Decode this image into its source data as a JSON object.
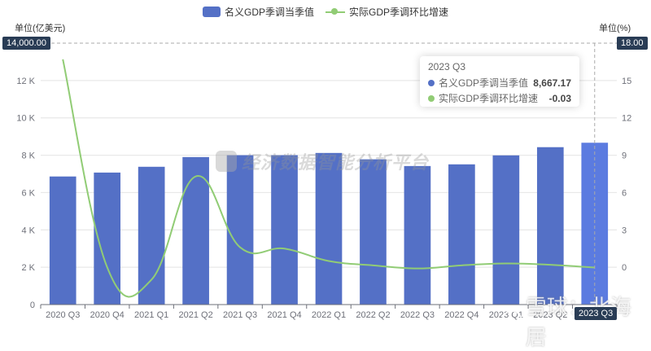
{
  "legend": {
    "bar_label": "名义GDP季调当季值",
    "line_label": "实际GDP季调环比增速"
  },
  "axes": {
    "left_unit": "单位(亿美元)",
    "right_unit": "单位(%)",
    "left_pointer_label": "14,000.00",
    "right_pointer_label": "18.00",
    "x_pointer_label": "2023 Q3"
  },
  "tooltip": {
    "title": "2023 Q3",
    "rows": [
      {
        "name": "名义GDP季调当季值",
        "value": "8,667.17",
        "color": "#5470c6"
      },
      {
        "name": "实际GDP季调环比增速",
        "value": "-0.03",
        "color": "#91cc75"
      }
    ]
  },
  "watermarks": {
    "center": "经济数据智能分析平台",
    "corner": "雪球：北海居"
  },
  "colors": {
    "bar": "#5470c6",
    "bar_highlight": "#5b7be0",
    "line": "#91cc75",
    "grid": "#e6e6e6",
    "axis_text": "#6e7079"
  },
  "chart_data": {
    "type": "bar+line",
    "title": "",
    "categories": [
      "2020 Q3",
      "2020 Q4",
      "2021 Q1",
      "2021 Q2",
      "2021 Q3",
      "2021 Q4",
      "2022 Q1",
      "2022 Q2",
      "2022 Q3",
      "2022 Q4",
      "2023 Q1",
      "2023 Q2",
      "2023 Q3"
    ],
    "series": [
      {
        "name": "名义GDP季调当季值",
        "type": "bar",
        "axis": "left",
        "values": [
          6860,
          7070,
          7380,
          7900,
          8000,
          8000,
          8120,
          7780,
          7420,
          7510,
          7990,
          8430,
          8667.17
        ]
      },
      {
        "name": "实际GDP季调环比增速",
        "type": "line",
        "axis": "right",
        "smooth": true,
        "values": [
          16.7,
          0.0,
          -1.0,
          7.3,
          1.6,
          1.5,
          0.5,
          0.15,
          -0.1,
          0.15,
          0.3,
          0.2,
          -0.03
        ]
      }
    ],
    "left_axis": {
      "label": "单位(亿美元)",
      "ylim": [
        0,
        14000
      ],
      "ticks": [
        0,
        2000,
        4000,
        6000,
        8000,
        10000,
        12000
      ],
      "tick_labels": [
        "0",
        "2 K",
        "4 K",
        "6 K",
        "8 K",
        "10 K",
        "12 K"
      ]
    },
    "right_axis": {
      "label": "单位(%)",
      "ylim": [
        -3,
        18
      ],
      "ticks": [
        0,
        3,
        6,
        9,
        12,
        15
      ],
      "tick_labels": [
        "0",
        "3",
        "6",
        "9",
        "12",
        "15"
      ]
    },
    "grid": true,
    "legend_position": "top"
  }
}
